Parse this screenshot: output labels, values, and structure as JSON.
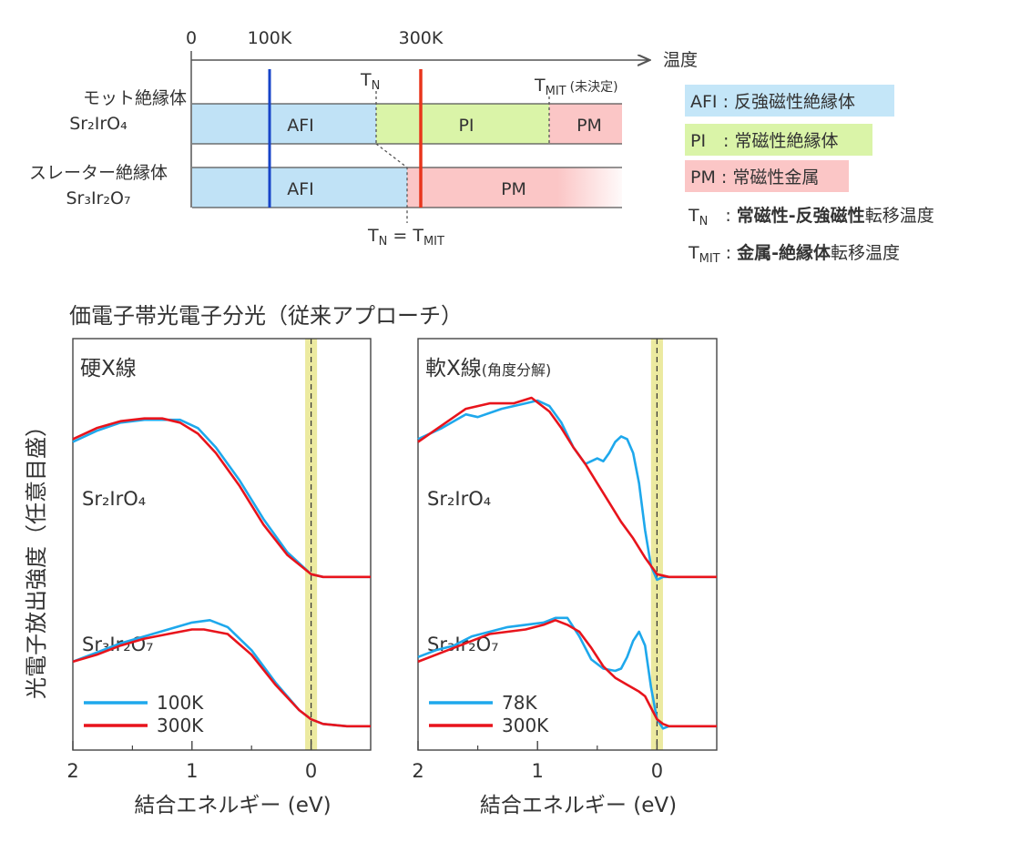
{
  "phase_diagram": {
    "temp_axis": {
      "label": "温度",
      "ticks": [
        "0",
        "100K",
        "300K"
      ],
      "min": 0,
      "max": 500
    },
    "markers": {
      "tn_label": "T",
      "tn_sub": "N",
      "tmit_label": "T",
      "tmit_sub": "MIT",
      "tmit_note": "(未決定)",
      "tn_eq": "T",
      "tn_eq_sub": "N",
      "tn_eq_eq": " = T",
      "tn_eq_sub2": "MIT"
    },
    "rows": [
      {
        "name": "モット絶縁体",
        "formula": "Sr₂IrO₄",
        "segments": [
          {
            "label": "AFI",
            "from": 0,
            "to": 240,
            "color": "#c0e2f6"
          },
          {
            "label": "PI",
            "from": 240,
            "to": 470,
            "color": "#daf4a8"
          },
          {
            "label": "PM",
            "from": 470,
            "to": 570,
            "color": "#fbc6c6"
          }
        ]
      },
      {
        "name": "スレーター絶縁体",
        "formula": "Sr₃Ir₂O₇",
        "segments": [
          {
            "label": "AFI",
            "from": 0,
            "to": 285,
            "color": "#c0e2f6"
          },
          {
            "label": "PM",
            "from": 285,
            "to": 570,
            "color": "#fbc6c6"
          }
        ]
      }
    ],
    "legend": [
      {
        "text": "AFI : 反強磁性絶縁体",
        "color": "#c4e6f8"
      },
      {
        "text": "PI　: 常磁性絶縁体",
        "color": "#daf4a8"
      },
      {
        "text": "PM : 常磁性金属",
        "color": "#fbc6c6"
      }
    ],
    "definitions": [
      {
        "sym": "T",
        "sub": "N",
        "sep": "　: ",
        "bold": "常磁性-反強磁性",
        "rest": "転移温度"
      },
      {
        "sym": "T",
        "sub": "MIT",
        "sep": " : ",
        "bold": "金属-絶縁体",
        "rest": "転移温度"
      }
    ]
  },
  "section_title": "価電子帯光電子分光（従来アプローチ）",
  "y_axis_label": "光電子放出強度（任意目盛）",
  "chart_data": [
    {
      "type": "line",
      "title": "硬X線",
      "subtitle": "",
      "xlabel": "結合エネルギー (eV)",
      "ylabel": "光電子放出強度（任意目盛）",
      "xlim": [
        2,
        -0.5
      ],
      "xticks": [
        "2",
        "1",
        "0"
      ],
      "ylim": [
        0,
        1
      ],
      "legend": "bottom-left",
      "sample_labels": [
        "Sr₂IrO₄",
        "Sr₃Ir₂O₇"
      ],
      "fermi_band": [
        -0.05,
        0.05
      ],
      "series": [
        {
          "name": "100K",
          "color": "#1ea8ec",
          "group": "Sr₂IrO₄",
          "x": [
            2.0,
            1.8,
            1.6,
            1.4,
            1.25,
            1.1,
            0.95,
            0.8,
            0.6,
            0.4,
            0.2,
            0.0,
            -0.1,
            -0.5
          ],
          "y": [
            0.7,
            0.74,
            0.77,
            0.78,
            0.78,
            0.78,
            0.75,
            0.68,
            0.56,
            0.42,
            0.3,
            0.22,
            0.21,
            0.21
          ]
        },
        {
          "name": "300K",
          "color": "#e8141c",
          "group": "Sr₂IrO₄",
          "x": [
            2.0,
            1.8,
            1.6,
            1.4,
            1.25,
            1.1,
            0.95,
            0.8,
            0.6,
            0.4,
            0.2,
            0.0,
            -0.1,
            -0.5
          ],
          "y": [
            0.71,
            0.75,
            0.775,
            0.785,
            0.785,
            0.77,
            0.73,
            0.66,
            0.54,
            0.4,
            0.29,
            0.22,
            0.21,
            0.21
          ]
        },
        {
          "name": "100K",
          "color": "#1ea8ec",
          "group": "Sr₃Ir₂O₇",
          "x": [
            2.0,
            1.8,
            1.6,
            1.4,
            1.2,
            1.0,
            0.85,
            0.7,
            0.5,
            0.3,
            0.1,
            0.0,
            -0.1,
            -0.3,
            -0.5
          ],
          "y": [
            0.33,
            0.37,
            0.41,
            0.44,
            0.47,
            0.5,
            0.51,
            0.48,
            0.38,
            0.24,
            0.12,
            0.08,
            0.06,
            0.05,
            0.05
          ]
        },
        {
          "name": "300K",
          "color": "#e8141c",
          "group": "Sr₃Ir₂O₇",
          "x": [
            2.0,
            1.8,
            1.6,
            1.4,
            1.2,
            1.0,
            0.9,
            0.7,
            0.5,
            0.3,
            0.1,
            0.0,
            -0.1,
            -0.3,
            -0.5
          ],
          "y": [
            0.33,
            0.36,
            0.4,
            0.43,
            0.45,
            0.47,
            0.47,
            0.45,
            0.36,
            0.23,
            0.12,
            0.08,
            0.06,
            0.05,
            0.05
          ]
        }
      ]
    },
    {
      "type": "line",
      "title": "軟X線",
      "subtitle": "(角度分解)",
      "xlabel": "結合エネルギー (eV)",
      "ylabel": "光電子放出強度（任意目盛）",
      "xlim": [
        2,
        -0.5
      ],
      "xticks": [
        "2",
        "1",
        "0"
      ],
      "ylim": [
        0,
        1
      ],
      "legend": "bottom-left",
      "sample_labels": [
        "Sr₂IrO₄",
        "Sr₃Ir₂O₇"
      ],
      "fermi_band": [
        -0.05,
        0.05
      ],
      "series": [
        {
          "name": "78K",
          "color": "#1ea8ec",
          "group": "Sr₂IrO₄",
          "x": [
            2.0,
            1.8,
            1.6,
            1.5,
            1.3,
            1.1,
            1.0,
            0.9,
            0.8,
            0.7,
            0.6,
            0.5,
            0.45,
            0.4,
            0.35,
            0.3,
            0.25,
            0.2,
            0.15,
            0.1,
            0.05,
            0.0,
            -0.05,
            -0.2,
            -0.5
          ],
          "y": [
            0.71,
            0.75,
            0.8,
            0.79,
            0.82,
            0.84,
            0.85,
            0.83,
            0.77,
            0.68,
            0.62,
            0.64,
            0.63,
            0.66,
            0.7,
            0.72,
            0.71,
            0.66,
            0.55,
            0.38,
            0.25,
            0.2,
            0.21,
            0.21,
            0.21
          ]
        },
        {
          "name": "300K",
          "color": "#e8141c",
          "group": "Sr₂IrO₄",
          "x": [
            2.0,
            1.8,
            1.6,
            1.4,
            1.2,
            1.05,
            0.9,
            0.8,
            0.7,
            0.6,
            0.5,
            0.4,
            0.3,
            0.2,
            0.1,
            0.0,
            -0.1,
            -0.3,
            -0.5
          ],
          "y": [
            0.7,
            0.76,
            0.82,
            0.84,
            0.84,
            0.86,
            0.81,
            0.75,
            0.68,
            0.62,
            0.55,
            0.48,
            0.41,
            0.35,
            0.28,
            0.22,
            0.21,
            0.21,
            0.21
          ]
        },
        {
          "name": "78K",
          "color": "#1ea8ec",
          "group": "Sr₃Ir₂O₇",
          "x": [
            2.0,
            1.85,
            1.7,
            1.55,
            1.4,
            1.25,
            1.1,
            0.95,
            0.85,
            0.75,
            0.65,
            0.55,
            0.45,
            0.35,
            0.3,
            0.25,
            0.2,
            0.15,
            0.1,
            0.05,
            0.0,
            -0.05,
            -0.1,
            -0.3,
            -0.5
          ],
          "y": [
            0.35,
            0.38,
            0.4,
            0.44,
            0.46,
            0.48,
            0.49,
            0.5,
            0.52,
            0.52,
            0.44,
            0.34,
            0.3,
            0.29,
            0.3,
            0.35,
            0.42,
            0.46,
            0.4,
            0.22,
            0.08,
            0.04,
            0.05,
            0.05,
            0.05
          ]
        },
        {
          "name": "300K",
          "color": "#e8141c",
          "group": "Sr₃Ir₂O₇",
          "x": [
            2.0,
            1.85,
            1.7,
            1.55,
            1.4,
            1.25,
            1.1,
            0.95,
            0.85,
            0.75,
            0.65,
            0.55,
            0.45,
            0.35,
            0.25,
            0.15,
            0.1,
            0.05,
            0.0,
            -0.05,
            -0.1,
            -0.3,
            -0.5
          ],
          "y": [
            0.33,
            0.36,
            0.39,
            0.42,
            0.45,
            0.46,
            0.47,
            0.49,
            0.51,
            0.49,
            0.46,
            0.39,
            0.31,
            0.26,
            0.23,
            0.2,
            0.18,
            0.13,
            0.08,
            0.06,
            0.05,
            0.05,
            0.05
          ]
        }
      ]
    }
  ]
}
